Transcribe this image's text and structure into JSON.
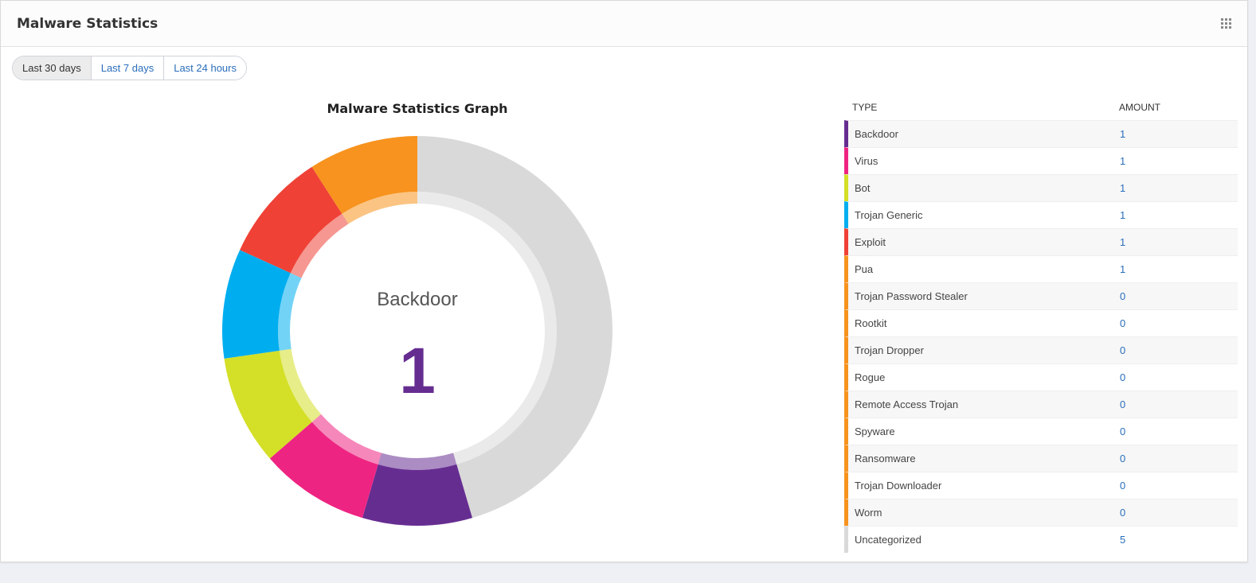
{
  "header": {
    "title": "Malware Statistics",
    "menu_icon": "grid-icon"
  },
  "tabs": [
    {
      "label": "Last 30 days",
      "active": true
    },
    {
      "label": "Last 7 days",
      "active": false
    },
    {
      "label": "Last 24 hours",
      "active": false
    }
  ],
  "graph": {
    "title": "Malware Statistics Graph",
    "center_label": "Backdoor",
    "center_value": "1"
  },
  "table": {
    "headers": {
      "type": "TYPE",
      "amount": "AMOUNT"
    },
    "rows": [
      {
        "name": "Backdoor",
        "amount": "1",
        "color": "#662d91"
      },
      {
        "name": "Virus",
        "amount": "1",
        "color": "#ee2482"
      },
      {
        "name": "Bot",
        "amount": "1",
        "color": "#d4df27"
      },
      {
        "name": "Trojan Generic",
        "amount": "1",
        "color": "#00aeef"
      },
      {
        "name": "Exploit",
        "amount": "1",
        "color": "#ef4136"
      },
      {
        "name": "Pua",
        "amount": "1",
        "color": "#f7931e"
      },
      {
        "name": "Trojan Password Stealer",
        "amount": "0",
        "color": "#f7931e"
      },
      {
        "name": "Rootkit",
        "amount": "0",
        "color": "#f7931e"
      },
      {
        "name": "Trojan Dropper",
        "amount": "0",
        "color": "#f7931e"
      },
      {
        "name": "Rogue",
        "amount": "0",
        "color": "#f7931e"
      },
      {
        "name": "Remote Access Trojan",
        "amount": "0",
        "color": "#f7931e"
      },
      {
        "name": "Spyware",
        "amount": "0",
        "color": "#f7931e"
      },
      {
        "name": "Ransomware",
        "amount": "0",
        "color": "#f7931e"
      },
      {
        "name": "Trojan Downloader",
        "amount": "0",
        "color": "#f7931e"
      },
      {
        "name": "Worm",
        "amount": "0",
        "color": "#f7931e"
      },
      {
        "name": "Uncategorized",
        "amount": "5",
        "color": "#d9d9d9"
      }
    ]
  },
  "chart_data": {
    "type": "pie",
    "title": "Malware Statistics Graph",
    "categories": [
      "Backdoor",
      "Virus",
      "Bot",
      "Trojan Generic",
      "Exploit",
      "Pua",
      "Uncategorized"
    ],
    "values": [
      1,
      1,
      1,
      1,
      1,
      1,
      5
    ],
    "colors": [
      "#662d91",
      "#ee2482",
      "#d4df27",
      "#00aeef",
      "#ef4136",
      "#f7931e",
      "#d9d9d9"
    ],
    "highlighted": "Backdoor"
  }
}
